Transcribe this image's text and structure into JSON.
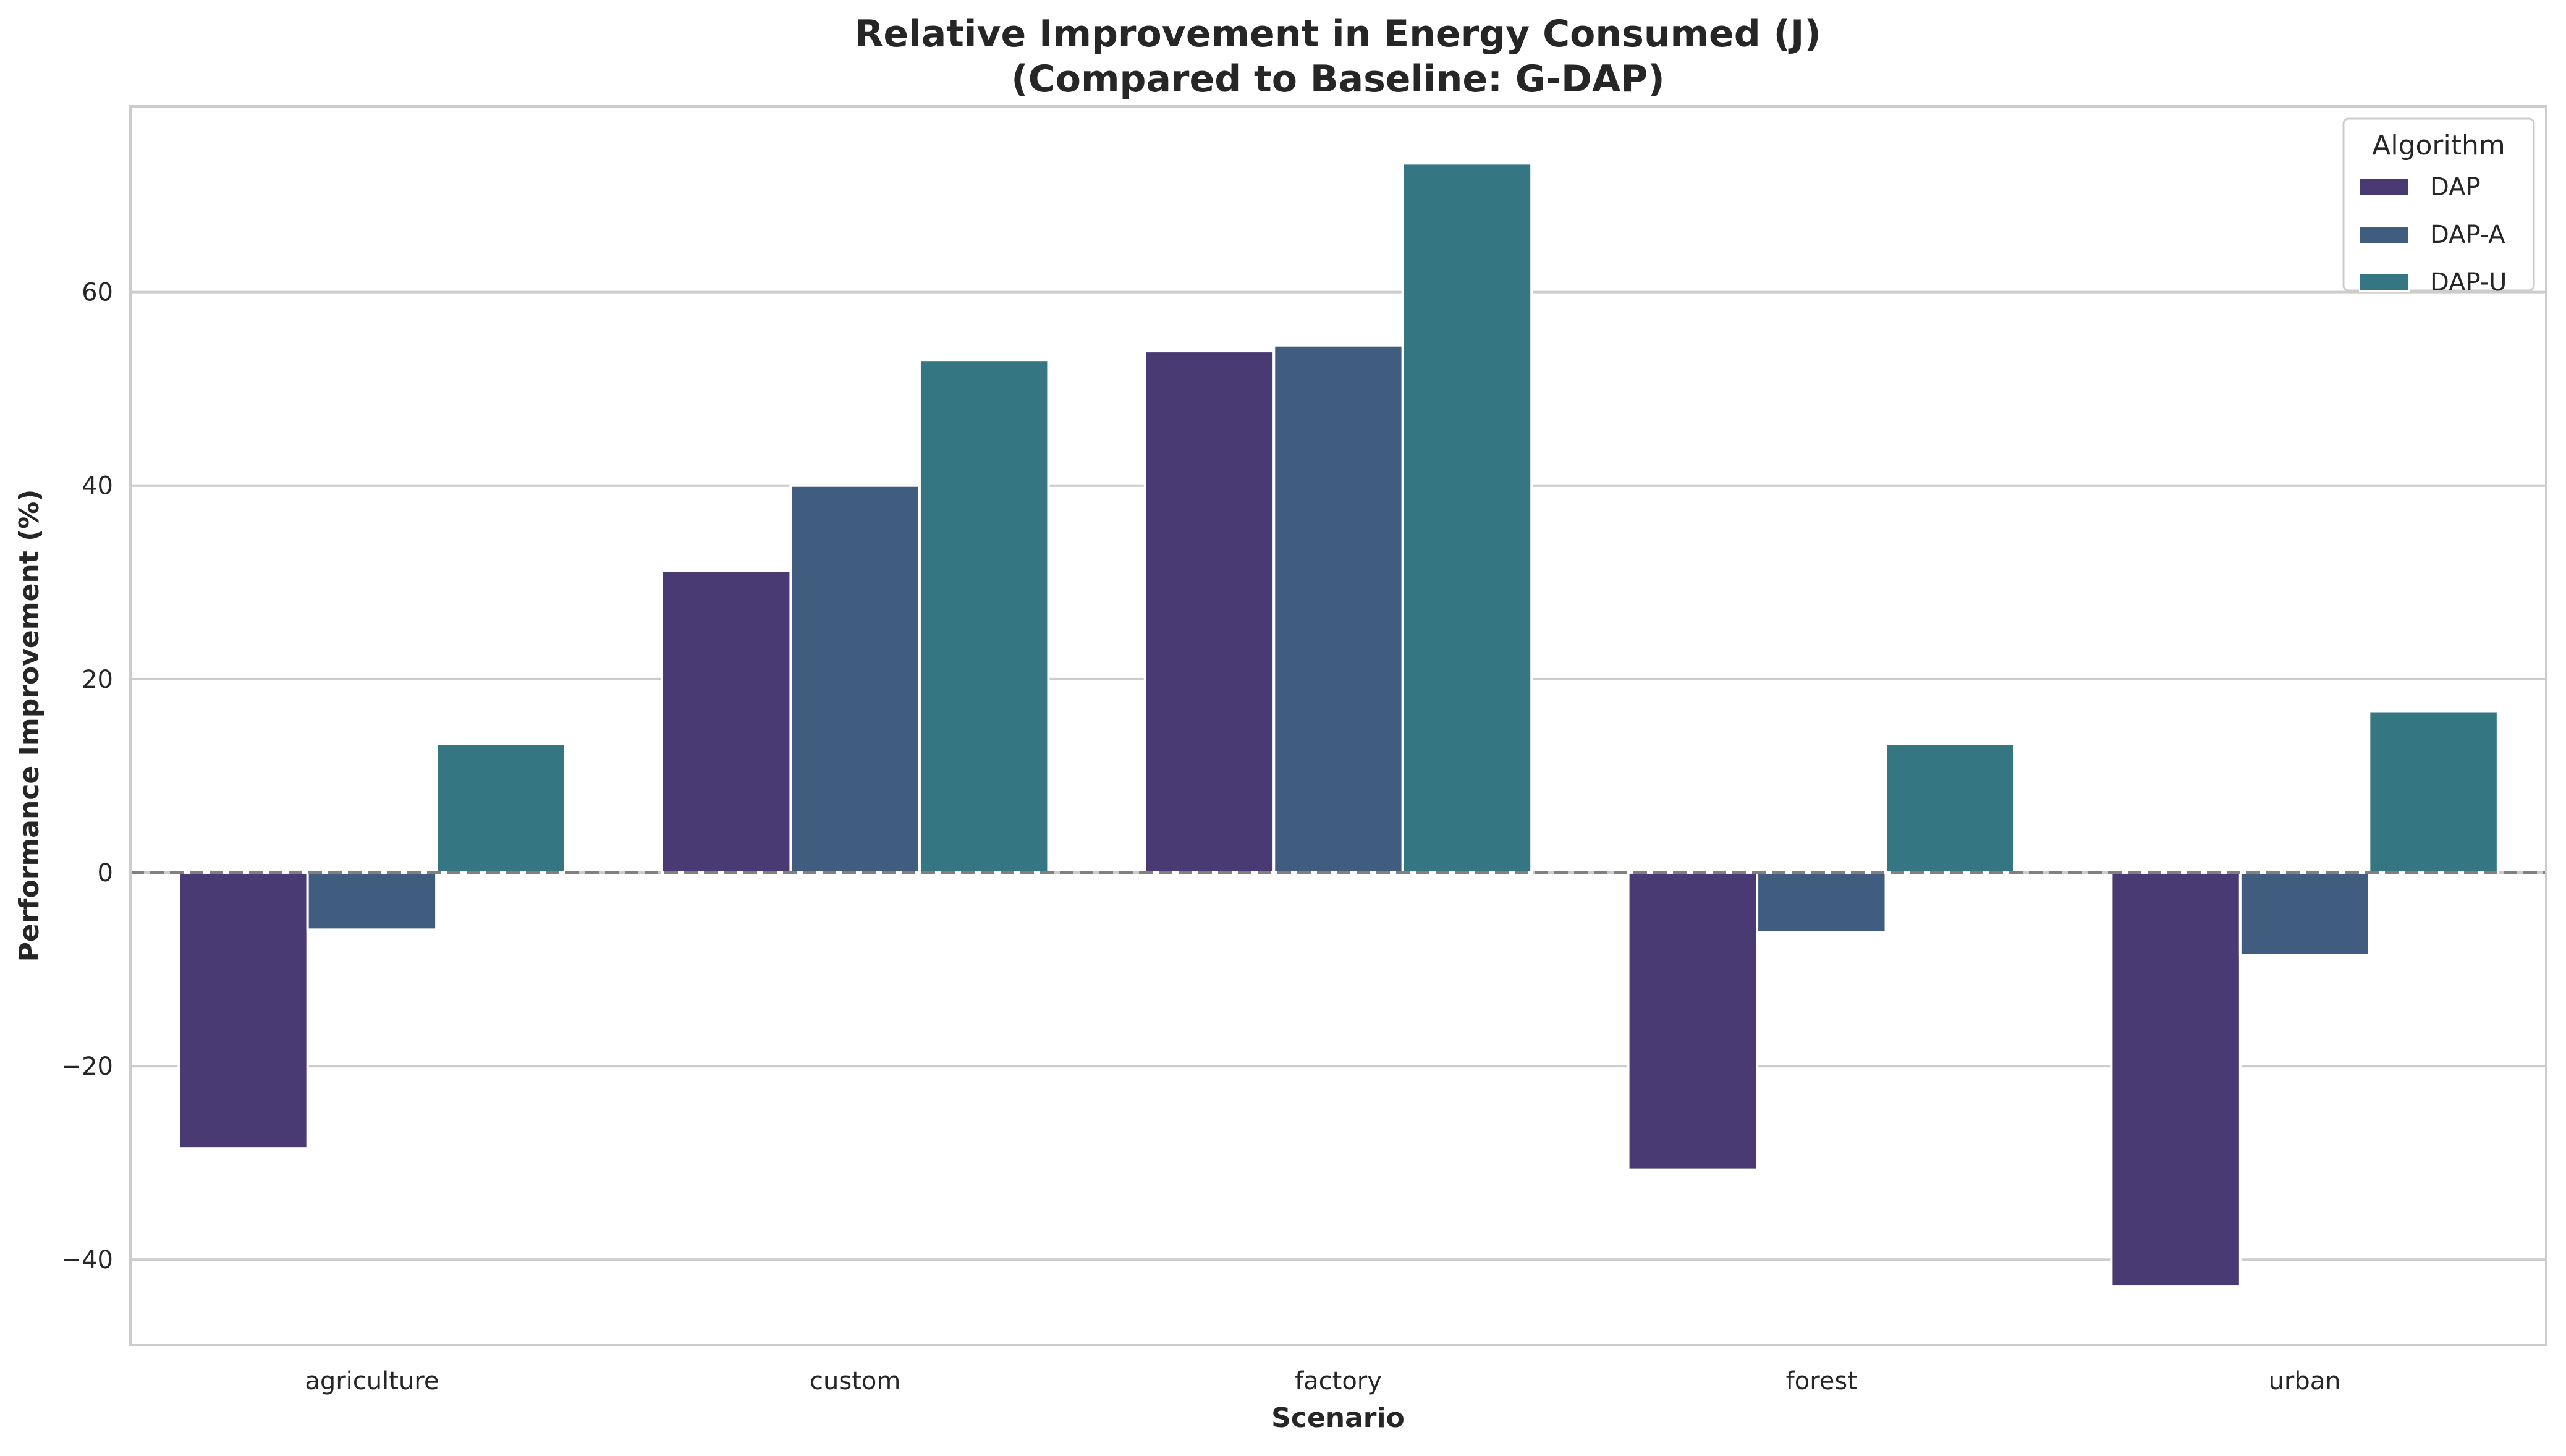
{
  "chart_data": {
    "type": "bar",
    "title": "Relative Improvement in Energy Consumed (J)",
    "subtitle": "(Compared to Baseline: G-DAP)",
    "xlabel": "Scenario",
    "ylabel": "Performance Improvement (%)",
    "categories": [
      "agriculture",
      "custom",
      "factory",
      "forest",
      "urban"
    ],
    "series": [
      {
        "name": "DAP",
        "color": "#4a3a73",
        "values": [
          -28.5,
          31.2,
          53.9,
          -30.7,
          -42.8
        ]
      },
      {
        "name": "DAP-A",
        "color": "#405d80",
        "values": [
          -5.9,
          40.0,
          54.5,
          -6.2,
          -8.5
        ]
      },
      {
        "name": "DAP-U",
        "color": "#347681",
        "values": [
          13.3,
          53.0,
          73.3,
          13.3,
          16.7
        ]
      }
    ],
    "yticks": [
      -40,
      -20,
      0,
      20,
      40,
      60
    ],
    "ytick_labels": [
      "−40",
      "−20",
      "0",
      "20",
      "40",
      "60"
    ],
    "ylim": [
      -48.8,
      79.2
    ],
    "legend": {
      "title": "Algorithm",
      "position": "top-right"
    },
    "reference_line": {
      "value": 0,
      "style": "dashed"
    },
    "grid": "horizontal"
  }
}
